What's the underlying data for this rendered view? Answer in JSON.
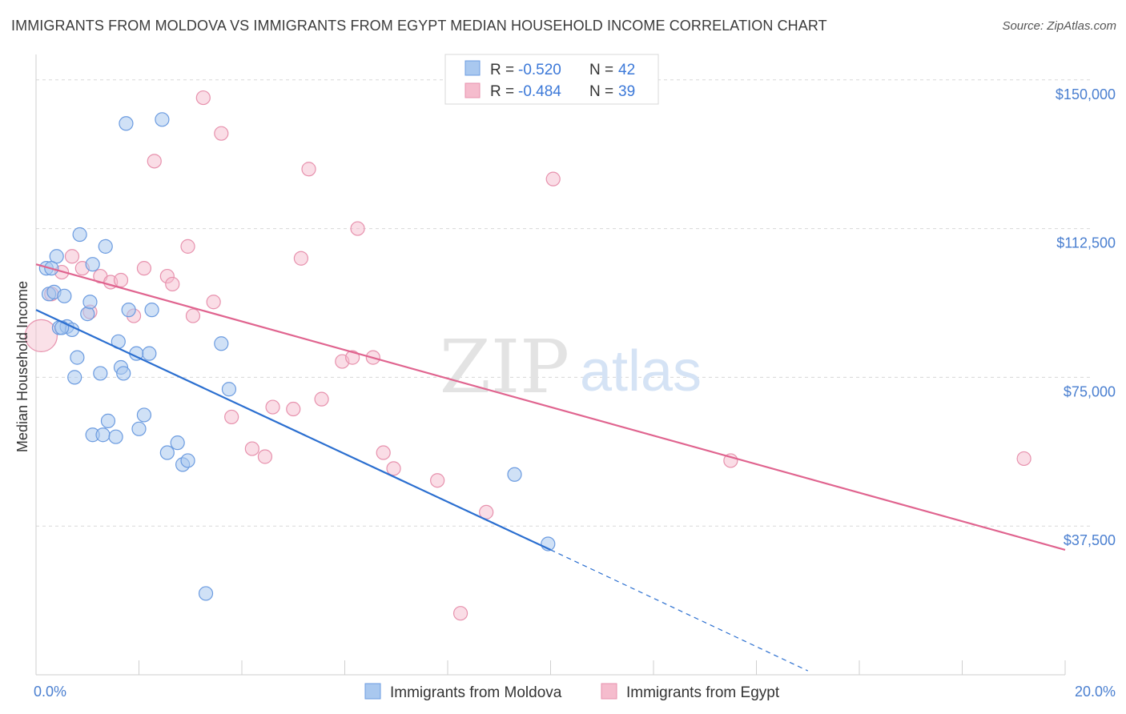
{
  "title": "IMMIGRANTS FROM MOLDOVA VS IMMIGRANTS FROM EGYPT MEDIAN HOUSEHOLD INCOME CORRELATION CHART",
  "source": "Source: ZipAtlas.com",
  "watermark": {
    "zip": "ZIP",
    "atlas": "atlas"
  },
  "colors": {
    "moldova_fill": "#a9c8ef",
    "moldova_stroke": "#6b9be0",
    "moldova_line": "#2b6fd0",
    "egypt_fill": "#f5bccd",
    "egypt_stroke": "#e791ad",
    "egypt_line": "#e0648f",
    "grid": "#d8d8d8",
    "tick_label": "#4a7fd0"
  },
  "legend": {
    "rows": [
      {
        "r_label": "R = ",
        "r_value": "-0.520",
        "n_label": "N = ",
        "n_value": "42"
      },
      {
        "r_label": "R = ",
        "r_value": "-0.484",
        "n_label": "N = ",
        "n_value": "39"
      }
    ]
  },
  "chart_data": {
    "type": "scatter",
    "title": "IMMIGRANTS FROM MOLDOVA VS IMMIGRANTS FROM EGYPT MEDIAN HOUSEHOLD INCOME CORRELATION CHART",
    "xlabel": "",
    "ylabel": "Median Household Income",
    "xlim": [
      0,
      20
    ],
    "ylim": [
      0,
      155000
    ],
    "x_ticks": [
      0,
      20
    ],
    "x_tick_labels": [
      "0.0%",
      "20.0%"
    ],
    "y_ticks": [
      37500,
      75000,
      112500,
      150000
    ],
    "y_tick_labels": [
      "$37,500",
      "$75,000",
      "$112,500",
      "$150,000"
    ],
    "grid": true,
    "legend_position": "top-center",
    "series": [
      {
        "name": "Immigrants from Moldova",
        "r": -0.52,
        "n": 42,
        "trend": {
          "x": [
            0,
            10
          ],
          "y": [
            92000,
            31500
          ]
        },
        "trend_extension": {
          "x": [
            10,
            15
          ],
          "y": [
            31500,
            1000
          ]
        },
        "points": [
          {
            "x": 0.2,
            "y": 102500
          },
          {
            "x": 0.25,
            "y": 96000
          },
          {
            "x": 0.35,
            "y": 96500
          },
          {
            "x": 0.4,
            "y": 105500
          },
          {
            "x": 0.45,
            "y": 87500
          },
          {
            "x": 0.55,
            "y": 95500
          },
          {
            "x": 0.6,
            "y": 87800
          },
          {
            "x": 0.7,
            "y": 87000
          },
          {
            "x": 0.75,
            "y": 75000
          },
          {
            "x": 0.8,
            "y": 80000
          },
          {
            "x": 0.85,
            "y": 111000
          },
          {
            "x": 1.0,
            "y": 91000
          },
          {
            "x": 1.05,
            "y": 94000
          },
          {
            "x": 1.1,
            "y": 103500
          },
          {
            "x": 1.1,
            "y": 60500
          },
          {
            "x": 1.25,
            "y": 76000
          },
          {
            "x": 1.3,
            "y": 60500
          },
          {
            "x": 1.35,
            "y": 108000
          },
          {
            "x": 1.4,
            "y": 64000
          },
          {
            "x": 1.55,
            "y": 60000
          },
          {
            "x": 1.6,
            "y": 84000
          },
          {
            "x": 1.65,
            "y": 77500
          },
          {
            "x": 1.7,
            "y": 76000
          },
          {
            "x": 1.75,
            "y": 139000
          },
          {
            "x": 1.8,
            "y": 92000
          },
          {
            "x": 1.95,
            "y": 81000
          },
          {
            "x": 2.0,
            "y": 62000
          },
          {
            "x": 2.1,
            "y": 65500
          },
          {
            "x": 2.2,
            "y": 81000
          },
          {
            "x": 2.25,
            "y": 92000
          },
          {
            "x": 2.45,
            "y": 140000
          },
          {
            "x": 2.55,
            "y": 56000
          },
          {
            "x": 2.75,
            "y": 58500
          },
          {
            "x": 2.85,
            "y": 53000
          },
          {
            "x": 2.95,
            "y": 54000
          },
          {
            "x": 3.3,
            "y": 20500
          },
          {
            "x": 3.6,
            "y": 83500
          },
          {
            "x": 3.75,
            "y": 72000
          },
          {
            "x": 9.3,
            "y": 50500
          },
          {
            "x": 9.95,
            "y": 33000
          },
          {
            "x": 0.3,
            "y": 102500
          },
          {
            "x": 0.5,
            "y": 87500
          }
        ]
      },
      {
        "name": "Immigrants from Egypt",
        "r": -0.484,
        "n": 39,
        "trend": {
          "x": [
            0,
            20
          ],
          "y": [
            103500,
            31500
          ]
        },
        "points": [
          {
            "x": 0.1,
            "y": 85500
          },
          {
            "x": 0.3,
            "y": 96000
          },
          {
            "x": 0.5,
            "y": 101500
          },
          {
            "x": 0.7,
            "y": 105500
          },
          {
            "x": 0.9,
            "y": 102500
          },
          {
            "x": 1.05,
            "y": 91500
          },
          {
            "x": 1.25,
            "y": 100500
          },
          {
            "x": 1.45,
            "y": 99000
          },
          {
            "x": 1.65,
            "y": 99500
          },
          {
            "x": 1.9,
            "y": 90500
          },
          {
            "x": 2.1,
            "y": 102500
          },
          {
            "x": 2.3,
            "y": 129500
          },
          {
            "x": 2.55,
            "y": 100500
          },
          {
            "x": 2.65,
            "y": 98500
          },
          {
            "x": 2.95,
            "y": 108000
          },
          {
            "x": 3.05,
            "y": 90500
          },
          {
            "x": 3.25,
            "y": 145500
          },
          {
            "x": 3.45,
            "y": 94000
          },
          {
            "x": 3.6,
            "y": 136500
          },
          {
            "x": 3.8,
            "y": 65000
          },
          {
            "x": 4.2,
            "y": 57000
          },
          {
            "x": 4.45,
            "y": 55000
          },
          {
            "x": 4.6,
            "y": 67500
          },
          {
            "x": 5.0,
            "y": 67000
          },
          {
            "x": 5.15,
            "y": 105000
          },
          {
            "x": 5.3,
            "y": 127500
          },
          {
            "x": 5.55,
            "y": 69500
          },
          {
            "x": 5.95,
            "y": 79000
          },
          {
            "x": 6.15,
            "y": 80000
          },
          {
            "x": 6.25,
            "y": 112500
          },
          {
            "x": 6.55,
            "y": 80000
          },
          {
            "x": 6.75,
            "y": 56000
          },
          {
            "x": 6.95,
            "y": 52000
          },
          {
            "x": 7.8,
            "y": 49000
          },
          {
            "x": 8.25,
            "y": 15500
          },
          {
            "x": 8.75,
            "y": 41000
          },
          {
            "x": 10.05,
            "y": 125000
          },
          {
            "x": 13.5,
            "y": 54000
          },
          {
            "x": 19.2,
            "y": 54500
          }
        ]
      }
    ]
  }
}
